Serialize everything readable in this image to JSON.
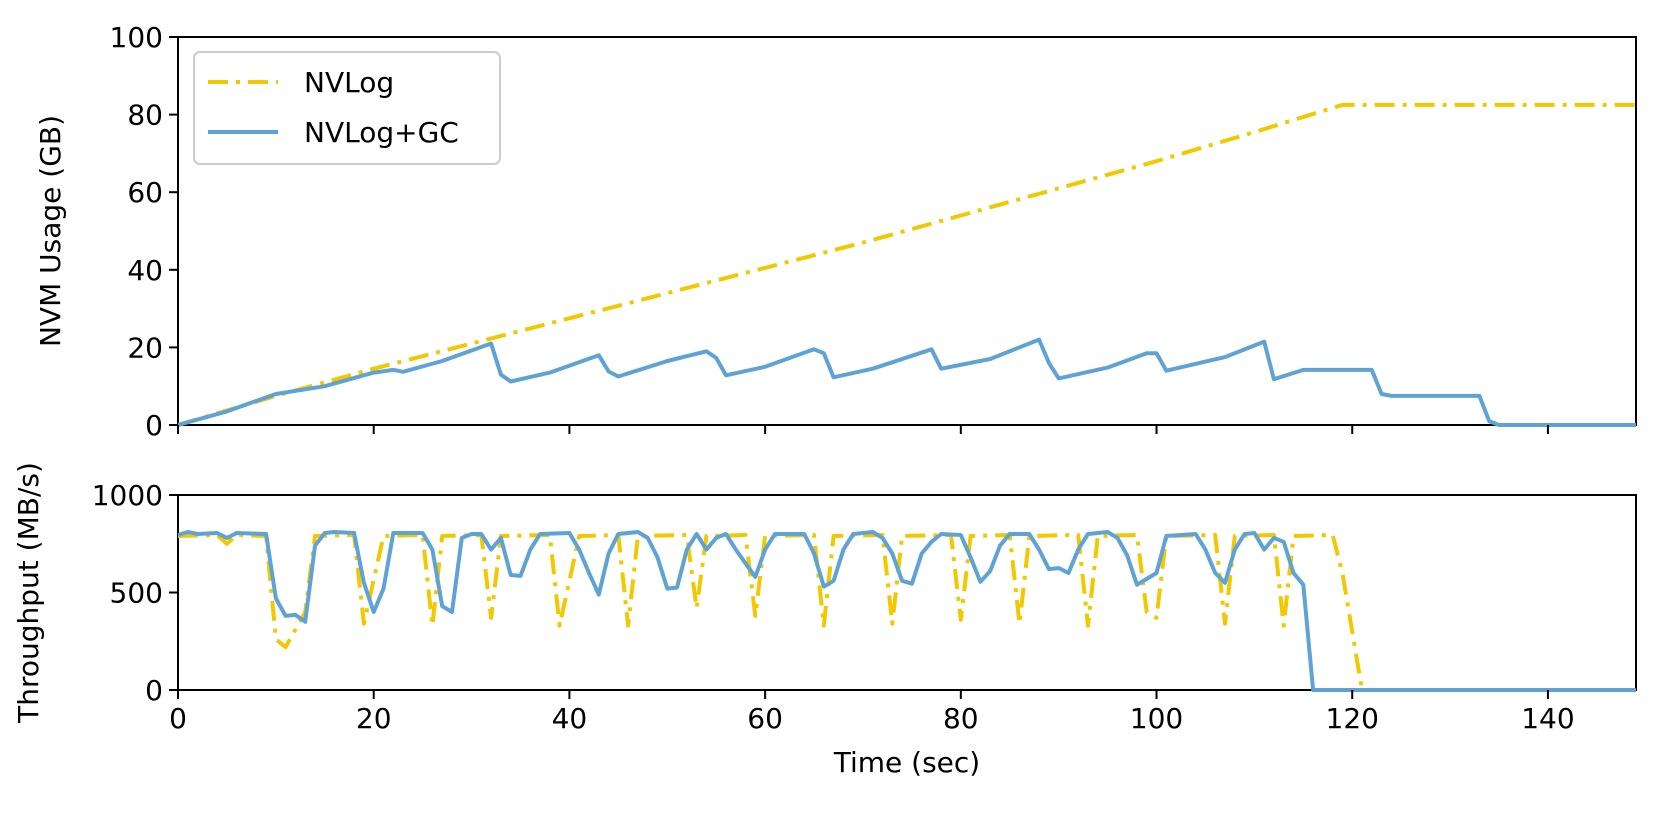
{
  "chart_data": [
    {
      "type": "line",
      "ylabel": "NVM Usage (GB)",
      "xlabel": "",
      "xlim": [
        0,
        149
      ],
      "ylim": [
        0,
        100
      ],
      "yticks": [
        0,
        20,
        40,
        60,
        80,
        100
      ],
      "xticks": [
        0,
        20,
        40,
        60,
        80,
        100,
        120,
        140
      ],
      "show_x_tick_labels": false,
      "legend": {
        "position": "top-left",
        "entries": [
          "NVLog",
          "NVLog+GC"
        ]
      },
      "series": [
        {
          "name": "NVLog",
          "color": "#f2c800",
          "style": "dashdot",
          "points": [
            [
              0,
              0
            ],
            [
              10,
              7.5
            ],
            [
              20,
              14.5
            ],
            [
              30,
              21
            ],
            [
              40,
              27.5
            ],
            [
              50,
              34
            ],
            [
              60,
              40.5
            ],
            [
              70,
              47
            ],
            [
              80,
              54
            ],
            [
              90,
              61
            ],
            [
              100,
              68
            ],
            [
              110,
              75.5
            ],
            [
              119,
              82.5
            ],
            [
              149,
              82.5
            ]
          ]
        },
        {
          "name": "NVLog+GC",
          "color": "#5fa3d6",
          "style": "solid",
          "points": [
            [
              0,
              0
            ],
            [
              5,
              3.5
            ],
            [
              10,
              8
            ],
            [
              15,
              10
            ],
            [
              20,
              13.5
            ],
            [
              22,
              14.2
            ],
            [
              23,
              13.7
            ],
            [
              27,
              16.5
            ],
            [
              32,
              21
            ],
            [
              33,
              13
            ],
            [
              34,
              11.2
            ],
            [
              38,
              13.5
            ],
            [
              43,
              18
            ],
            [
              44,
              13.8
            ],
            [
              45,
              12.5
            ],
            [
              50,
              16.5
            ],
            [
              54,
              19
            ],
            [
              55,
              17.3
            ],
            [
              56,
              12.8
            ],
            [
              60,
              15
            ],
            [
              65,
              19.5
            ],
            [
              66,
              18.5
            ],
            [
              67,
              12.3
            ],
            [
              71,
              14.5
            ],
            [
              77,
              19.5
            ],
            [
              78,
              14.5
            ],
            [
              83,
              17
            ],
            [
              88,
              22
            ],
            [
              89,
              16
            ],
            [
              90,
              12
            ],
            [
              95,
              14.8
            ],
            [
              99,
              18.5
            ],
            [
              100,
              18.5
            ],
            [
              101,
              14
            ],
            [
              107,
              17.5
            ],
            [
              111,
              21.5
            ],
            [
              112,
              11.8
            ],
            [
              115,
              14.2
            ],
            [
              122,
              14.2
            ],
            [
              123,
              8
            ],
            [
              124,
              7.5
            ],
            [
              133,
              7.5
            ],
            [
              134,
              1
            ],
            [
              135,
              0
            ],
            [
              149,
              0
            ]
          ]
        }
      ]
    },
    {
      "type": "line",
      "ylabel": "Throughput (MB/s)",
      "xlabel": "Time (sec)",
      "xlim": [
        0,
        149
      ],
      "ylim": [
        0,
        1000
      ],
      "yticks": [
        0,
        500,
        1000
      ],
      "xticks": [
        0,
        20,
        40,
        60,
        80,
        100,
        120,
        140
      ],
      "show_x_tick_labels": true,
      "series": [
        {
          "name": "NVLog",
          "color": "#f2c800",
          "style": "dashdot",
          "points": [
            [
              0,
              790
            ],
            [
              4,
              795
            ],
            [
              5,
              750
            ],
            [
              6,
              795
            ],
            [
              9,
              790
            ],
            [
              10,
              260
            ],
            [
              11,
              220
            ],
            [
              13,
              400
            ],
            [
              14,
              790
            ],
            [
              18,
              795
            ],
            [
              19,
              340
            ],
            [
              21,
              790
            ],
            [
              25,
              795
            ],
            [
              26,
              330
            ],
            [
              27,
              790
            ],
            [
              31,
              795
            ],
            [
              32,
              370
            ],
            [
              33,
              790
            ],
            [
              38,
              795
            ],
            [
              39,
              330
            ],
            [
              41,
              790
            ],
            [
              45,
              795
            ],
            [
              46,
              330
            ],
            [
              47,
              790
            ],
            [
              52,
              795
            ],
            [
              53,
              420
            ],
            [
              54,
              790
            ],
            [
              58,
              795
            ],
            [
              59,
              380
            ],
            [
              60,
              790
            ],
            [
              65,
              795
            ],
            [
              66,
              330
            ],
            [
              67,
              790
            ],
            [
              72,
              795
            ],
            [
              73,
              340
            ],
            [
              74,
              790
            ],
            [
              79,
              795
            ],
            [
              80,
              360
            ],
            [
              81,
              790
            ],
            [
              85,
              795
            ],
            [
              86,
              340
            ],
            [
              87,
              790
            ],
            [
              92,
              795
            ],
            [
              93,
              330
            ],
            [
              94,
              790
            ],
            [
              98,
              795
            ],
            [
              99,
              400
            ],
            [
              100,
              370
            ],
            [
              101,
              790
            ],
            [
              106,
              795
            ],
            [
              107,
              340
            ],
            [
              108,
              790
            ],
            [
              112,
              795
            ],
            [
              113,
              330
            ],
            [
              114,
              790
            ],
            [
              118,
              795
            ],
            [
              119,
              600
            ],
            [
              121,
              0
            ],
            [
              149,
              0
            ]
          ]
        },
        {
          "name": "NVLog+GC",
          "color": "#5fa3d6",
          "style": "solid",
          "points": [
            [
              0,
              795
            ],
            [
              1,
              810
            ],
            [
              2,
              800
            ],
            [
              4,
              805
            ],
            [
              5,
              780
            ],
            [
              6,
              805
            ],
            [
              9,
              800
            ],
            [
              10,
              470
            ],
            [
              11,
              380
            ],
            [
              12,
              385
            ],
            [
              13,
              350
            ],
            [
              14,
              740
            ],
            [
              15,
              805
            ],
            [
              16,
              810
            ],
            [
              18,
              805
            ],
            [
              19,
              550
            ],
            [
              20,
              400
            ],
            [
              21,
              520
            ],
            [
              22,
              805
            ],
            [
              25,
              805
            ],
            [
              26,
              720
            ],
            [
              27,
              430
            ],
            [
              28,
              400
            ],
            [
              29,
              780
            ],
            [
              30,
              800
            ],
            [
              31,
              800
            ],
            [
              32,
              720
            ],
            [
              33,
              780
            ],
            [
              34,
              590
            ],
            [
              35,
              585
            ],
            [
              36,
              720
            ],
            [
              37,
              800
            ],
            [
              40,
              805
            ],
            [
              41,
              720
            ],
            [
              42,
              600
            ],
            [
              43,
              490
            ],
            [
              44,
              700
            ],
            [
              45,
              800
            ],
            [
              47,
              810
            ],
            [
              48,
              780
            ],
            [
              49,
              680
            ],
            [
              50,
              520
            ],
            [
              51,
              525
            ],
            [
              52,
              720
            ],
            [
              53,
              800
            ],
            [
              54,
              720
            ],
            [
              55,
              780
            ],
            [
              56,
              800
            ],
            [
              57,
              720
            ],
            [
              58,
              650
            ],
            [
              59,
              580
            ],
            [
              60,
              720
            ],
            [
              61,
              800
            ],
            [
              64,
              800
            ],
            [
              65,
              700
            ],
            [
              66,
              530
            ],
            [
              67,
              560
            ],
            [
              68,
              720
            ],
            [
              69,
              800
            ],
            [
              71,
              810
            ],
            [
              72,
              780
            ],
            [
              73,
              700
            ],
            [
              74,
              560
            ],
            [
              75,
              545
            ],
            [
              76,
              700
            ],
            [
              77,
              760
            ],
            [
              78,
              800
            ],
            [
              80,
              795
            ],
            [
              81,
              680
            ],
            [
              82,
              555
            ],
            [
              83,
              610
            ],
            [
              84,
              740
            ],
            [
              85,
              800
            ],
            [
              87,
              800
            ],
            [
              88,
              720
            ],
            [
              89,
              620
            ],
            [
              90,
              625
            ],
            [
              91,
              600
            ],
            [
              92,
              720
            ],
            [
              93,
              800
            ],
            [
              95,
              810
            ],
            [
              96,
              780
            ],
            [
              97,
              690
            ],
            [
              98,
              540
            ],
            [
              99,
              570
            ],
            [
              100,
              600
            ],
            [
              101,
              790
            ],
            [
              104,
              800
            ],
            [
              105,
              720
            ],
            [
              106,
              600
            ],
            [
              107,
              550
            ],
            [
              108,
              720
            ],
            [
              109,
              800
            ],
            [
              110,
              805
            ],
            [
              111,
              720
            ],
            [
              112,
              780
            ],
            [
              113,
              760
            ],
            [
              114,
              600
            ],
            [
              115,
              540
            ],
            [
              116,
              0
            ],
            [
              149,
              0
            ]
          ]
        }
      ]
    }
  ]
}
